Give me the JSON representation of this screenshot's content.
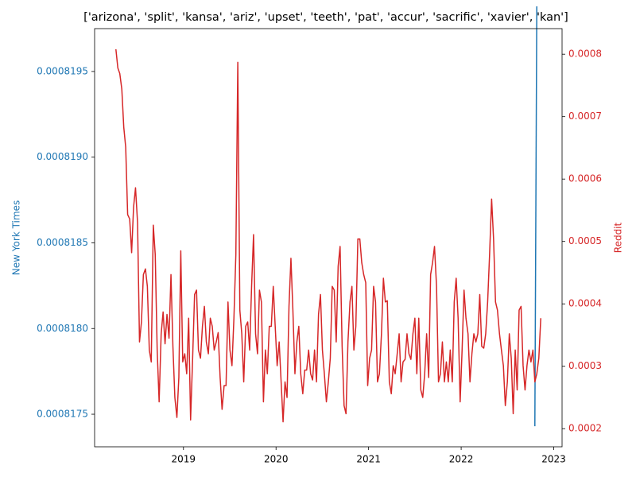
{
  "chart_data": {
    "type": "line",
    "title": "['arizona', 'split', 'kansa', 'ariz', 'upset', 'teeth', 'pat', 'accur', 'sacrific', 'xavier', 'kan']",
    "ylabel": "New York Times",
    "y2label": "Reddit",
    "xlim": [
      2018.04,
      2023.09
    ],
    "xticks": [
      2019,
      2020,
      2021,
      2022,
      2023
    ],
    "ylim": [
      0.00081731,
      0.00081975
    ],
    "yticks": [
      0.0008175,
      {
        "value": 0.000818,
        "label": "0.0008180"
      },
      0.0008185,
      {
        "value": 0.000819,
        "label": "0.0008190"
      },
      0.0008195
    ],
    "y2lim": [
      0.000171,
      0.000841
    ],
    "y2ticks": [
      0.0002,
      0.0003,
      0.0004,
      0.0005,
      0.0006,
      0.0007,
      0.0008
    ],
    "grid": false,
    "series": [
      {
        "name": "New York Times",
        "color": "#1f77b4",
        "axis": "y",
        "x": [
          2022.796,
          2022.817
        ],
        "values": [
          0.00081743,
          0.00081988
        ]
      },
      {
        "name": "Reddit",
        "color": "#d62728",
        "axis": "y2",
        "x": [
          2018.27,
          2018.291,
          2018.312,
          2018.334,
          2018.355,
          2018.376,
          2018.397,
          2018.419,
          2018.44,
          2018.461,
          2018.482,
          2018.504,
          2018.525,
          2018.546,
          2018.567,
          2018.589,
          2018.61,
          2018.631,
          2018.652,
          2018.674,
          2018.695,
          2018.716,
          2018.737,
          2018.759,
          2018.78,
          2018.801,
          2018.822,
          2018.844,
          2018.865,
          2018.886,
          2018.907,
          2018.929,
          2018.95,
          2018.971,
          2018.992,
          2019.014,
          2019.035,
          2019.056,
          2019.077,
          2019.099,
          2019.12,
          2019.141,
          2019.162,
          2019.184,
          2019.205,
          2019.226,
          2019.247,
          2019.269,
          2019.29,
          2019.311,
          2019.332,
          2019.354,
          2019.375,
          2019.396,
          2019.417,
          2019.439,
          2019.46,
          2019.481,
          2019.502,
          2019.524,
          2019.545,
          2019.566,
          2019.587,
          2019.609,
          2019.63,
          2019.651,
          2019.672,
          2019.694,
          2019.715,
          2019.736,
          2019.757,
          2019.779,
          2019.8,
          2019.821,
          2019.842,
          2019.864,
          2019.885,
          2019.906,
          2019.927,
          2019.949,
          2019.97,
          2019.991,
          2020.012,
          2020.034,
          2020.055,
          2020.076,
          2020.097,
          2020.119,
          2020.14,
          2020.161,
          2020.182,
          2020.204,
          2020.225,
          2020.246,
          2020.267,
          2020.289,
          2020.31,
          2020.331,
          2020.352,
          2020.374,
          2020.395,
          2020.416,
          2020.437,
          2020.459,
          2020.48,
          2020.501,
          2020.522,
          2020.544,
          2020.565,
          2020.586,
          2020.607,
          2020.629,
          2020.65,
          2020.671,
          2020.692,
          2020.714,
          2020.735,
          2020.756,
          2020.777,
          2020.799,
          2020.82,
          2020.841,
          2020.862,
          2020.884,
          2020.905,
          2020.926,
          2020.947,
          2020.969,
          2020.99,
          2021.011,
          2021.032,
          2021.054,
          2021.075,
          2021.096,
          2021.117,
          2021.139,
          2021.16,
          2021.181,
          2021.202,
          2021.224,
          2021.245,
          2021.266,
          2021.287,
          2021.309,
          2021.33,
          2021.351,
          2021.372,
          2021.394,
          2021.415,
          2021.436,
          2021.457,
          2021.479,
          2021.5,
          2021.521,
          2021.542,
          2021.564,
          2021.585,
          2021.606,
          2021.627,
          2021.649,
          2021.67,
          2021.691,
          2021.712,
          2021.734,
          2021.755,
          2021.776,
          2021.797,
          2021.819,
          2021.84,
          2021.861,
          2021.882,
          2021.904,
          2021.925,
          2021.946,
          2021.967,
          2021.989,
          2022.01,
          2022.031,
          2022.052,
          2022.074,
          2022.095,
          2022.116,
          2022.137,
          2022.159,
          2022.18,
          2022.201,
          2022.222,
          2022.244,
          2022.265,
          2022.286,
          2022.307,
          2022.329,
          2022.35,
          2022.371,
          2022.392,
          2022.414,
          2022.435,
          2022.456,
          2022.477,
          2022.499,
          2022.52,
          2022.541,
          2022.562,
          2022.584,
          2022.605,
          2022.626,
          2022.647,
          2022.669,
          2022.69,
          2022.711,
          2022.732,
          2022.754,
          2022.775,
          2022.796,
          2022.817,
          2022.839,
          2022.86
        ],
        "values": [
          0.000808,
          0.000778,
          0.000769,
          0.000744,
          0.000683,
          0.000651,
          0.000543,
          0.000536,
          0.000482,
          0.000555,
          0.000586,
          0.00053,
          0.000339,
          0.000371,
          0.000447,
          0.000456,
          0.000428,
          0.000326,
          0.000307,
          0.000526,
          0.000479,
          0.000326,
          0.000243,
          0.000352,
          0.000387,
          0.000336,
          0.000383,
          0.000345,
          0.000447,
          0.000332,
          0.00025,
          0.000218,
          0.000282,
          0.000485,
          0.000307,
          0.00032,
          0.000288,
          0.000377,
          0.000214,
          0.000313,
          0.000415,
          0.000422,
          0.000326,
          0.000313,
          0.000364,
          0.000396,
          0.000339,
          0.00032,
          0.000377,
          0.000364,
          0.000326,
          0.000339,
          0.000354,
          0.000282,
          0.000231,
          0.000269,
          0.000269,
          0.000403,
          0.000326,
          0.000301,
          0.000377,
          0.000479,
          0.000787,
          0.00039,
          0.000352,
          0.000275,
          0.000364,
          0.000371,
          0.000326,
          0.000428,
          0.000511,
          0.000352,
          0.00032,
          0.000422,
          0.000403,
          0.000243,
          0.000326,
          0.000288,
          0.000364,
          0.000364,
          0.000428,
          0.000364,
          0.000301,
          0.000339,
          0.000275,
          0.000211,
          0.000275,
          0.00025,
          0.000396,
          0.000473,
          0.00039,
          0.000288,
          0.000339,
          0.000364,
          0.000288,
          0.000256,
          0.000294,
          0.000294,
          0.000326,
          0.000288,
          0.000278,
          0.000326,
          0.000275,
          0.000383,
          0.000415,
          0.000326,
          0.000288,
          0.000243,
          0.000275,
          0.000313,
          0.000428,
          0.000422,
          0.000339,
          0.00046,
          0.000492,
          0.000332,
          0.000237,
          0.000224,
          0.000339,
          0.000403,
          0.000428,
          0.000326,
          0.000364,
          0.000504,
          0.000504,
          0.000466,
          0.000447,
          0.000434,
          0.000269,
          0.000313,
          0.000326,
          0.000428,
          0.000403,
          0.000275,
          0.000288,
          0.000352,
          0.000441,
          0.000403,
          0.000405,
          0.000275,
          0.000256,
          0.000301,
          0.000288,
          0.00032,
          0.000352,
          0.000275,
          0.000307,
          0.000311,
          0.000352,
          0.00032,
          0.000311,
          0.000352,
          0.000377,
          0.000288,
          0.000377,
          0.000262,
          0.00025,
          0.000288,
          0.000352,
          0.000282,
          0.000447,
          0.000466,
          0.000492,
          0.000428,
          0.000275,
          0.000288,
          0.000339,
          0.000275,
          0.000307,
          0.000275,
          0.000326,
          0.000275,
          0.000403,
          0.000441,
          0.000377,
          0.000243,
          0.000326,
          0.000422,
          0.000377,
          0.000352,
          0.000275,
          0.00032,
          0.000352,
          0.000339,
          0.000352,
          0.000415,
          0.000332,
          0.000329,
          0.000352,
          0.000403,
          0.000479,
          0.000568,
          0.000504,
          0.000403,
          0.00039,
          0.000352,
          0.000326,
          0.000301,
          0.000237,
          0.000275,
          0.000352,
          0.000313,
          0.000224,
          0.000326,
          0.000262,
          0.00039,
          0.000396,
          0.000301,
          0.000262,
          0.000301,
          0.000326,
          0.000307,
          0.000326,
          0.000275,
          0.000288,
          0.000313,
          0.000377
        ]
      }
    ]
  }
}
